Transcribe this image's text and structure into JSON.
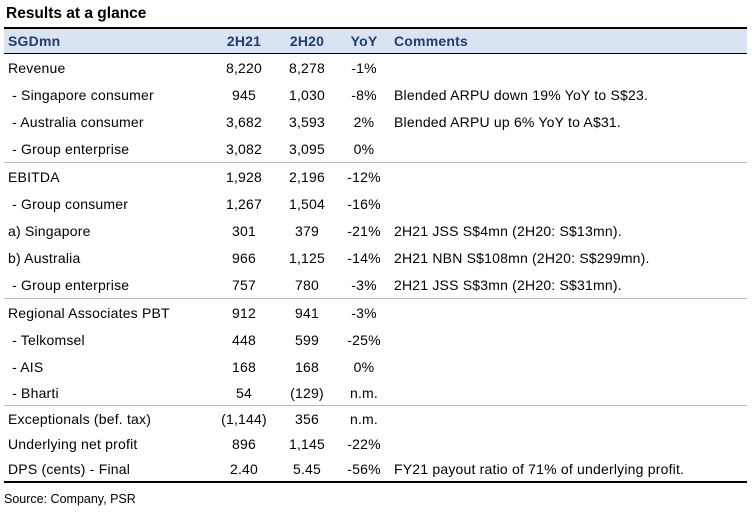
{
  "title": "Results at a glance",
  "columns": {
    "label": "SGDmn",
    "c1": "2H21",
    "c2": "2H20",
    "c3": "YoY",
    "comment": "Comments"
  },
  "rows": [
    {
      "label": "Revenue",
      "v1": "8,220",
      "v2": "8,278",
      "yoy": "-1%",
      "comment": ""
    },
    {
      "label": " - Singapore consumer",
      "v1": "945",
      "v2": "1,030",
      "yoy": "-8%",
      "comment": "Blended ARPU down 19% YoY to S$23."
    },
    {
      "label": " - Australia consumer",
      "v1": "3,682",
      "v2": "3,593",
      "yoy": "2%",
      "comment": "Blended ARPU up 6% YoY to A$31."
    },
    {
      "label": " - Group enterprise",
      "v1": "3,082",
      "v2": "3,095",
      "yoy": "0%",
      "comment": ""
    },
    {
      "label": "EBITDA",
      "v1": "1,928",
      "v2": "2,196",
      "yoy": "-12%",
      "comment": ""
    },
    {
      "label": " - Group consumer",
      "v1": "1,267",
      "v2": "1,504",
      "yoy": "-16%",
      "comment": ""
    },
    {
      "label": "a) Singapore",
      "v1": "301",
      "v2": "379",
      "yoy": "-21%",
      "comment": "2H21 JSS S$4mn (2H20: S$13mn)."
    },
    {
      "label": "b) Australia",
      "v1": "966",
      "v2": "1,125",
      "yoy": "-14%",
      "comment": "2H21 NBN S$108mn (2H20: S$299mn)."
    },
    {
      "label": " - Group enterprise",
      "v1": "757",
      "v2": "780",
      "yoy": "-3%",
      "comment": "2H21 JSS S$3mn (2H20: S$31mn)."
    },
    {
      "label": "Regional Associates PBT",
      "v1": "912",
      "v2": "941",
      "yoy": "-3%",
      "comment": ""
    },
    {
      "label": " - Telkomsel",
      "v1": "448",
      "v2": "599",
      "yoy": "-25%",
      "comment": ""
    },
    {
      "label": " - AIS",
      "v1": "168",
      "v2": "168",
      "yoy": "0%",
      "comment": ""
    },
    {
      "label": " - Bharti",
      "v1": "54",
      "v2": "(129)",
      "yoy": "n.m.",
      "comment": ""
    },
    {
      "label": "Exceptionals (bef. tax)",
      "v1": "(1,144)",
      "v2": "356",
      "yoy": "n.m.",
      "comment": ""
    },
    {
      "label": "Underlying net profit",
      "v1": "896",
      "v2": "1,145",
      "yoy": "-22%",
      "comment": ""
    },
    {
      "label": "DPS (cents) - Final",
      "v1": "2.40",
      "v2": "5.45",
      "yoy": "-56%",
      "comment": "FY21 payout ratio of 71% of underlying profit."
    }
  ],
  "source": "Source: Company, PSR"
}
